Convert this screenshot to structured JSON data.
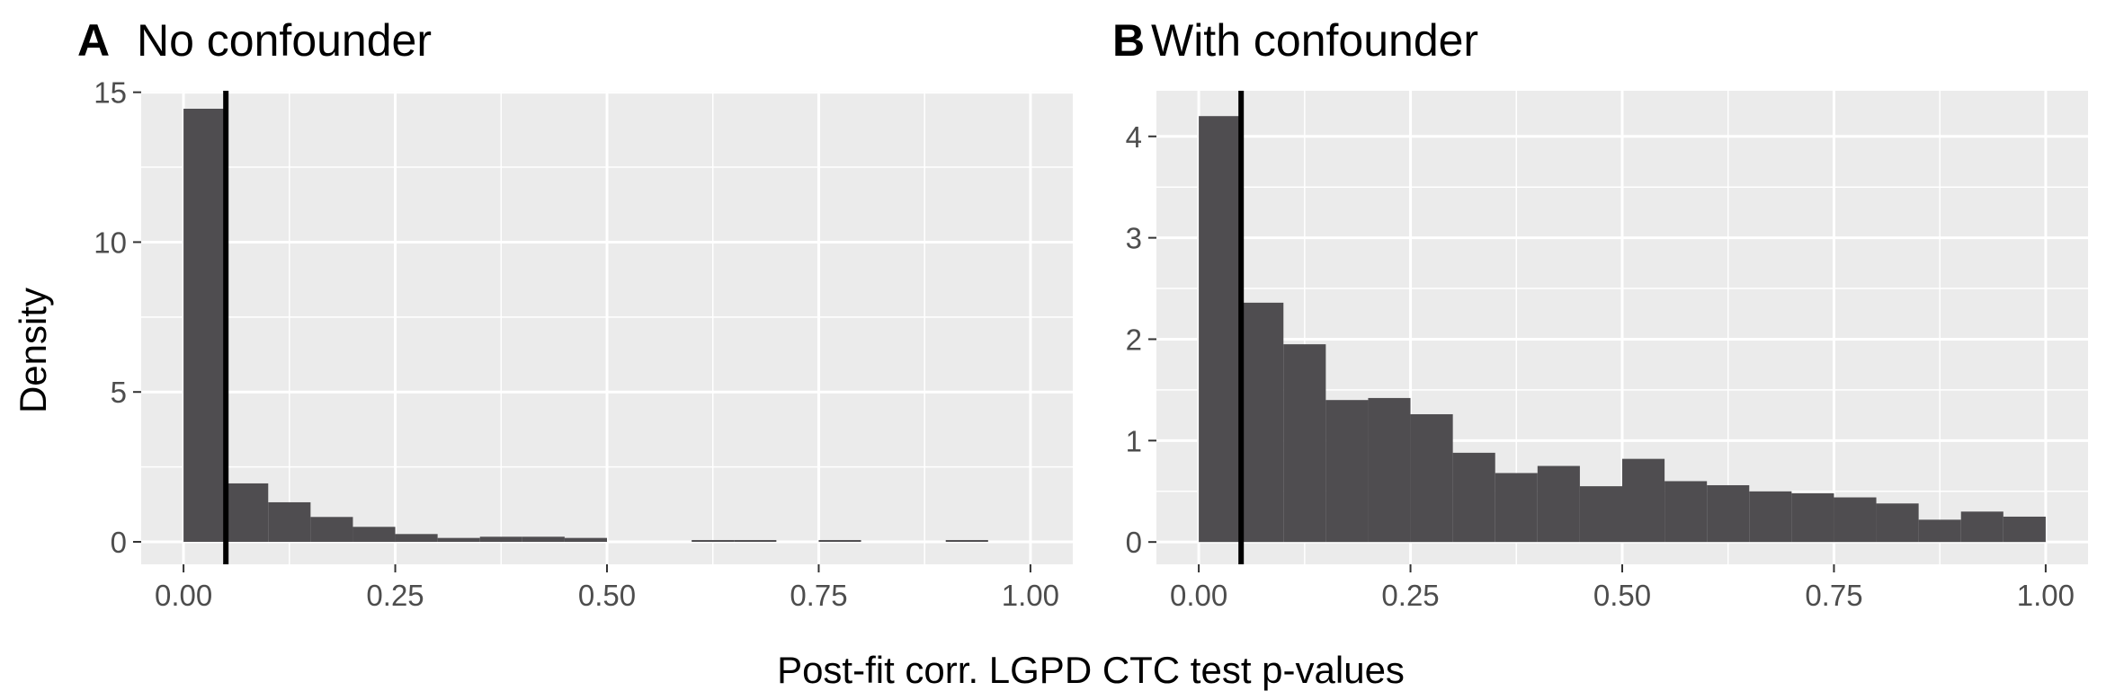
{
  "chart_data": [
    {
      "type": "bar",
      "panel_tag": "A",
      "title": "No confounder",
      "xlabel": "Post-fit corr. LGPD CTC test p-values",
      "ylabel": "Density",
      "xlim": [
        -0.05,
        1.05
      ],
      "ylim": [
        -0.75,
        15.05
      ],
      "x_ticks": [
        0,
        0.25,
        0.5,
        0.75,
        1
      ],
      "x_tick_labels": [
        "0.00",
        "0.25",
        "0.50",
        "0.75",
        "1.00"
      ],
      "y_ticks": [
        0,
        5,
        10,
        15
      ],
      "y_tick_labels": [
        "0",
        "5",
        "10",
        "15"
      ],
      "bin_width": 0.05,
      "bin_starts": [
        0,
        0.05,
        0.1,
        0.15,
        0.2,
        0.25,
        0.3,
        0.35,
        0.4,
        0.45,
        0.5,
        0.55,
        0.6,
        0.65,
        0.7,
        0.75,
        0.8,
        0.85,
        0.9,
        0.95
      ],
      "values": [
        14.45,
        1.95,
        1.32,
        0.83,
        0.5,
        0.26,
        0.13,
        0.17,
        0.17,
        0.13,
        0.0,
        0.0,
        0.04,
        0.04,
        0.0,
        0.04,
        0.0,
        0.0,
        0.04,
        0.0
      ],
      "vline_x": 0.05,
      "grid": true,
      "colors": {
        "bar": "#4f4d50",
        "panel": "#ebebeb",
        "grid": "#ffffff",
        "vline": "#000000"
      }
    },
    {
      "type": "bar",
      "panel_tag": "B",
      "title": "With confounder",
      "xlabel": "Post-fit corr. LGPD CTC test p-values",
      "ylabel": "Density",
      "xlim": [
        -0.05,
        1.05
      ],
      "ylim": [
        -0.22,
        4.45
      ],
      "x_ticks": [
        0,
        0.25,
        0.5,
        0.75,
        1
      ],
      "x_tick_labels": [
        "0.00",
        "0.25",
        "0.50",
        "0.75",
        "1.00"
      ],
      "y_ticks": [
        0,
        1,
        2,
        3,
        4
      ],
      "y_tick_labels": [
        "0",
        "1",
        "2",
        "3",
        "4"
      ],
      "bin_width": 0.05,
      "bin_starts": [
        0,
        0.05,
        0.1,
        0.15,
        0.2,
        0.25,
        0.3,
        0.35,
        0.4,
        0.45,
        0.5,
        0.55,
        0.6,
        0.65,
        0.7,
        0.75,
        0.8,
        0.85,
        0.9,
        0.95
      ],
      "values": [
        4.2,
        2.36,
        1.95,
        1.4,
        1.42,
        1.26,
        0.88,
        0.68,
        0.75,
        0.55,
        0.82,
        0.6,
        0.56,
        0.5,
        0.48,
        0.44,
        0.38,
        0.22,
        0.3,
        0.25
      ],
      "vline_x": 0.05,
      "grid": true,
      "colors": {
        "bar": "#4f4d50",
        "panel": "#ebebeb",
        "grid": "#ffffff",
        "vline": "#000000"
      }
    }
  ],
  "shared_labels": {
    "xlabel": "Post-fit corr. LGPD CTC test p-values",
    "ylabel": "Density"
  }
}
